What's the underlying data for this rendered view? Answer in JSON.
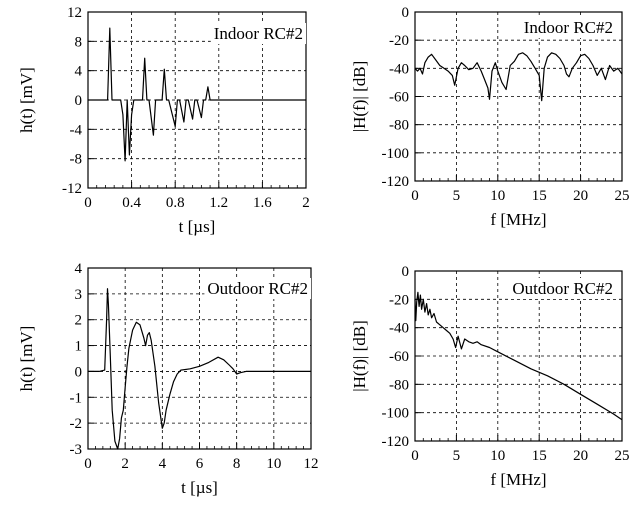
{
  "chart_data": [
    {
      "type": "line",
      "annotation": "Indoor RC#2",
      "xlabel": "t [µs]",
      "ylabel": "h(t) [mV]",
      "xlim": [
        0,
        2
      ],
      "ylim": [
        -12,
        12
      ],
      "xticks": [
        0,
        0.4,
        0.8,
        1.2,
        1.6,
        2
      ],
      "xtick_labels": [
        "0",
        "0.4",
        "0.8",
        "1.2",
        "1.6",
        "2"
      ],
      "yticks": [
        12,
        8,
        4,
        0,
        -4,
        -8,
        -12
      ],
      "ytick_labels": [
        "12",
        "8",
        "4",
        "0",
        "-4",
        "-8",
        "-12"
      ],
      "grid": true,
      "series": [
        {
          "x": [
            0,
            0.18,
            0.2,
            0.22,
            0.3,
            0.32,
            0.34,
            0.36,
            0.38,
            0.4,
            0.42,
            0.44,
            0.5,
            0.52,
            0.54,
            0.56,
            0.6,
            0.62,
            0.64,
            0.68,
            0.7,
            0.72,
            0.74,
            0.8,
            0.82,
            0.84,
            0.88,
            0.9,
            0.92,
            0.96,
            0.98,
            1.0,
            1.04,
            1.06,
            1.08,
            1.1,
            1.12,
            1.14,
            1.2,
            2.0
          ],
          "y": [
            0,
            0,
            9.8,
            0,
            0,
            -2,
            -8.3,
            0,
            -7.5,
            -2,
            0,
            0,
            0,
            5.7,
            0,
            0,
            -4.8,
            0,
            0,
            0,
            4.2,
            0,
            0,
            -3.6,
            0,
            0,
            -3.0,
            0,
            0,
            -2.6,
            0,
            0,
            -2.4,
            0,
            0,
            1.8,
            0,
            0,
            0,
            0
          ]
        }
      ]
    },
    {
      "type": "line",
      "annotation": "Indoor RC#2",
      "xlabel": "f [MHz]",
      "ylabel": "|H(f)| [dB]",
      "xlim": [
        0,
        25
      ],
      "ylim": [
        -120,
        0
      ],
      "xticks": [
        0,
        5,
        10,
        15,
        20,
        25
      ],
      "xtick_labels": [
        "0",
        "5",
        "10",
        "15",
        "20",
        "25"
      ],
      "yticks": [
        0,
        -20,
        -40,
        -60,
        -80,
        -100,
        -120
      ],
      "ytick_labels": [
        "0",
        "-20",
        "-40",
        "-60",
        "-80",
        "-100",
        "-120"
      ],
      "grid": true,
      "series": [
        {
          "x": [
            0,
            0.3,
            0.6,
            0.9,
            1.2,
            1.6,
            2.0,
            2.5,
            3.0,
            3.5,
            4.0,
            4.5,
            4.8,
            5.2,
            5.6,
            6.0,
            6.5,
            7.0,
            7.5,
            8.0,
            8.4,
            8.8,
            9.0,
            9.3,
            9.7,
            10.0,
            10.5,
            11.0,
            11.5,
            12.0,
            12.5,
            13.0,
            13.5,
            14.0,
            14.5,
            15.0,
            15.3,
            15.6,
            16.0,
            16.5,
            17.0,
            17.5,
            18.0,
            18.3,
            18.6,
            19.0,
            19.5,
            20.0,
            20.5,
            21.0,
            21.5,
            22.0,
            22.5,
            23.0,
            23.5,
            24.0,
            24.5,
            25.0
          ],
          "y": [
            -40,
            -42,
            -40,
            -44,
            -36,
            -32,
            -30,
            -34,
            -38,
            -40,
            -42,
            -45,
            -52,
            -40,
            -36,
            -38,
            -41,
            -40,
            -36,
            -42,
            -48,
            -54,
            -62,
            -42,
            -36,
            -42,
            -50,
            -55,
            -38,
            -35,
            -30,
            -29,
            -31,
            -35,
            -40,
            -45,
            -63,
            -40,
            -32,
            -29,
            -30,
            -33,
            -38,
            -44,
            -46,
            -40,
            -36,
            -31,
            -30,
            -33,
            -38,
            -45,
            -40,
            -48,
            -38,
            -42,
            -40,
            -44
          ]
        }
      ]
    },
    {
      "type": "line",
      "annotation": "Outdoor RC#2",
      "xlabel": "t [µs]",
      "ylabel": "h(t) [mV]",
      "xlim": [
        0,
        12
      ],
      "ylim": [
        -3,
        4
      ],
      "xticks": [
        0,
        2,
        4,
        6,
        8,
        10,
        12
      ],
      "xtick_labels": [
        "0",
        "2",
        "4",
        "6",
        "8",
        "10",
        "12"
      ],
      "yticks": [
        4,
        3,
        2,
        1,
        0,
        -1,
        -2,
        -3
      ],
      "ytick_labels": [
        "4",
        "3",
        "2",
        "1",
        "0",
        "-1",
        "-2",
        "-3"
      ],
      "grid": true,
      "series": [
        {
          "x": [
            0,
            0.6,
            0.9,
            1.0,
            1.05,
            1.1,
            1.2,
            1.3,
            1.45,
            1.6,
            1.7,
            1.8,
            1.9,
            2.0,
            2.1,
            2.2,
            2.4,
            2.6,
            2.8,
            3.0,
            3.1,
            3.2,
            3.3,
            3.4,
            3.6,
            3.8,
            4.0,
            4.1,
            4.2,
            4.4,
            4.6,
            4.8,
            5.0,
            5.5,
            6.0,
            6.5,
            7.0,
            7.3,
            7.6,
            7.8,
            8.0,
            8.2,
            8.5,
            9.0,
            9.5,
            10.0,
            11.0,
            12.0
          ],
          "y": [
            0,
            0,
            0.05,
            2.0,
            3.2,
            2.6,
            0.6,
            -1.5,
            -2.7,
            -3.0,
            -2.6,
            -1.8,
            -1.5,
            -0.6,
            0.2,
            0.9,
            1.6,
            1.9,
            1.8,
            1.3,
            1.0,
            1.4,
            1.5,
            1.2,
            0.2,
            -1.2,
            -2.2,
            -2.0,
            -1.5,
            -0.9,
            -0.4,
            -0.1,
            0.05,
            0.1,
            0.2,
            0.35,
            0.55,
            0.45,
            0.25,
            0.1,
            -0.1,
            -0.05,
            0.0,
            0.0,
            0.0,
            0.0,
            0.0,
            0.0
          ]
        }
      ]
    },
    {
      "type": "line",
      "annotation": "Outdoor RC#2",
      "xlabel": "f [MHz]",
      "ylabel": "|H(f)| [dB]",
      "xlim": [
        0,
        25
      ],
      "ylim": [
        -120,
        0
      ],
      "xticks": [
        0,
        5,
        10,
        15,
        20,
        25
      ],
      "xtick_labels": [
        "0",
        "5",
        "10",
        "15",
        "20",
        "25"
      ],
      "yticks": [
        0,
        -20,
        -40,
        -60,
        -80,
        -100,
        -120
      ],
      "ytick_labels": [
        "0",
        "-20",
        "-40",
        "-60",
        "-80",
        "-100",
        "-120"
      ],
      "grid": true,
      "series": [
        {
          "x": [
            0,
            0.1,
            0.2,
            0.35,
            0.5,
            0.65,
            0.8,
            1.0,
            1.2,
            1.4,
            1.6,
            1.8,
            2.0,
            2.3,
            2.6,
            3.0,
            3.4,
            3.8,
            4.2,
            4.6,
            4.9,
            5.2,
            5.6,
            6.0,
            6.5,
            7.0,
            7.5,
            8.0,
            9.0,
            10.0,
            12.0,
            14.0,
            16.0,
            18.0,
            20.0,
            22.0,
            24.0,
            25.0
          ],
          "y": [
            -20,
            -35,
            -22,
            -15,
            -25,
            -17,
            -27,
            -20,
            -29,
            -23,
            -31,
            -27,
            -33,
            -30,
            -36,
            -38,
            -40,
            -42,
            -44,
            -48,
            -54,
            -46,
            -55,
            -48,
            -50,
            -51,
            -50,
            -52,
            -54,
            -57,
            -63,
            -69,
            -74,
            -80,
            -87,
            -94,
            -101,
            -105
          ]
        }
      ]
    }
  ]
}
